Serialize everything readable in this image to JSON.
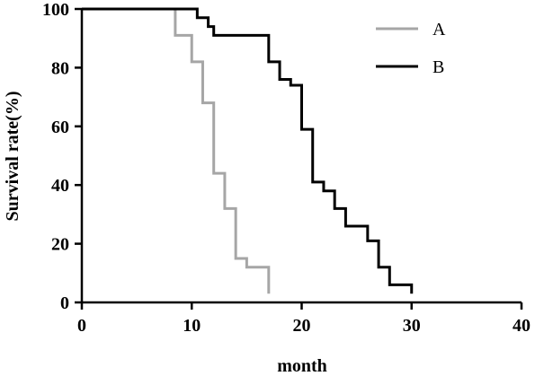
{
  "chart_data": {
    "type": "line",
    "step": true,
    "xlabel": "month",
    "ylabel": "Survival rate(%)",
    "xlim": [
      0,
      40
    ],
    "ylim": [
      0,
      100
    ],
    "xticks": [
      0,
      10,
      20,
      30,
      40
    ],
    "yticks": [
      0,
      20,
      40,
      60,
      80,
      100
    ],
    "grid": false,
    "legend_position": "top-right",
    "series": [
      {
        "name": "A",
        "color": "#a6a6a6",
        "x": [
          0,
          8,
          8.5,
          9,
          10,
          10,
          11,
          11,
          12,
          12,
          13,
          13,
          14,
          14,
          15,
          15,
          17
        ],
        "y": [
          100,
          100,
          91,
          91,
          82,
          82,
          68,
          68,
          44,
          44,
          32,
          32,
          15,
          15,
          12,
          12,
          3
        ]
      },
      {
        "name": "B",
        "color": "#000000",
        "x": [
          0,
          9.5,
          10.5,
          11,
          11.5,
          12,
          16,
          16,
          17,
          17,
          18,
          18,
          19,
          19,
          20,
          20,
          21,
          21,
          22,
          22,
          23,
          23,
          24,
          24,
          26,
          26,
          27,
          27,
          28,
          28,
          30
        ],
        "y": [
          100,
          100,
          97,
          97,
          94,
          91,
          91,
          91,
          82,
          82,
          76,
          76,
          74,
          74,
          59,
          59,
          41,
          41,
          38,
          38,
          32,
          32,
          26,
          26,
          21,
          21,
          12,
          12,
          6,
          6,
          3
        ]
      }
    ]
  }
}
